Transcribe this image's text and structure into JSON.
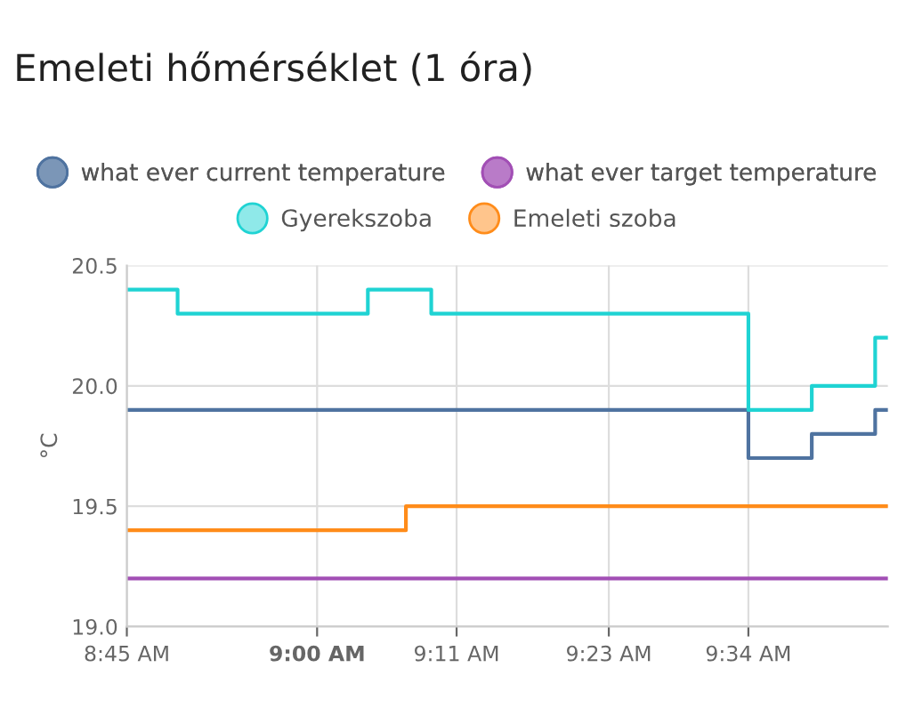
{
  "chart_data": {
    "type": "step",
    "title": "Emeleti hőmérséklet (1 óra)",
    "ylabel": "°C",
    "series": [
      {
        "name": "what ever current temperature",
        "color": "#4f73a0",
        "x": [
          8.75,
          9.5667,
          9.65,
          9.7333,
          9.75
        ],
        "values": [
          19.9,
          19.7,
          19.8,
          19.9,
          19.9
        ]
      },
      {
        "name": "what ever target temperature",
        "color": "#a24fb5",
        "x": [
          8.75,
          9.75
        ],
        "values": [
          19.2,
          19.2
        ]
      },
      {
        "name": "Gyerekszoba",
        "color": "#1fd3d3",
        "x": [
          8.75,
          8.8167,
          9.0667,
          9.15,
          9.5667,
          9.65,
          9.7333,
          9.75
        ],
        "values": [
          20.4,
          20.3,
          20.4,
          20.3,
          19.9,
          20.0,
          20.2,
          20.2
        ]
      },
      {
        "name": "Emeleti szoba",
        "color": "#ff8c1a",
        "x": [
          8.75,
          9.1167,
          9.75
        ],
        "values": [
          19.4,
          19.5,
          19.5
        ]
      }
    ],
    "xlim": [
      8.75,
      9.75
    ],
    "xticks": [
      {
        "value": 8.75,
        "label": "8:45 AM"
      },
      {
        "value": 9.0,
        "label": "9:00 AM"
      },
      {
        "value": 9.1833,
        "label": "9:11 AM"
      },
      {
        "value": 9.3833,
        "label": "9:23 AM"
      },
      {
        "value": 9.5667,
        "label": "9:34 AM"
      }
    ],
    "ylim": [
      19.0,
      20.5
    ],
    "yticks": [
      {
        "value": 19.0,
        "label": "19.0"
      },
      {
        "value": 19.5,
        "label": "19.5"
      },
      {
        "value": 20.0,
        "label": "20.0"
      },
      {
        "value": 20.5,
        "label": "20.5"
      }
    ],
    "grid": true,
    "legend": "top",
    "marker": "none",
    "line_style": "solid"
  }
}
